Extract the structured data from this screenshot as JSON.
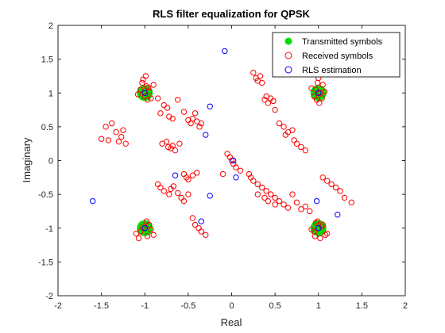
{
  "chart_data": {
    "type": "scatter",
    "title": "RLS filter equalization for QPSK",
    "xlabel": "Real",
    "ylabel": "Imaginary",
    "xlim": [
      -2,
      2
    ],
    "ylim": [
      -2,
      2
    ],
    "xticks": [
      -2,
      -1.5,
      -1,
      -0.5,
      0,
      0.5,
      1,
      1.5,
      2
    ],
    "yticks": [
      -2,
      -1.5,
      -1,
      -0.5,
      0,
      0.5,
      1,
      1.5,
      2
    ],
    "xtick_labels": [
      "-2",
      "-1.5",
      "-1",
      "-0.5",
      "0",
      "0.5",
      "1",
      "1.5",
      "2"
    ],
    "ytick_labels": [
      "-2",
      "-1.5",
      "-1",
      "-0.5",
      "0",
      "0.5",
      "1",
      "1.5",
      "2"
    ],
    "grid": false,
    "legend_position": "top-right",
    "series": [
      {
        "name": "Transmitted symbols",
        "marker": "filled-circle",
        "color": "#00e000",
        "x": [
          -1,
          1,
          -1,
          1
        ],
        "y": [
          1,
          1,
          -1,
          -1
        ]
      },
      {
        "name": "Received symbols",
        "marker": "open-circle",
        "color": "#ff0000",
        "x": [
          -1.05,
          -1.02,
          -0.98,
          -0.95,
          -1.0,
          -0.97,
          -1.03,
          -0.99,
          -0.9,
          -1.08,
          -0.93,
          -0.96,
          1.02,
          0.97,
          1.05,
          1.0,
          0.95,
          1.03,
          0.98,
          1.07,
          0.92,
          1.01,
          0.99,
          1.04,
          -1.0,
          -0.95,
          -1.05,
          -0.9,
          -1.1,
          -0.98,
          -1.02,
          -0.93,
          -1.07,
          -0.97,
          1.0,
          1.05,
          0.95,
          1.08,
          1.1,
          0.97,
          1.02,
          0.92,
          1.04,
          0.99,
          0.96,
          -1.45,
          -1.42,
          -1.38,
          -1.33,
          -1.3,
          -1.27,
          -1.25,
          -1.22,
          -1.5,
          -0.85,
          -0.82,
          -0.78,
          -0.74,
          -0.72,
          -0.68,
          -0.62,
          -0.55,
          -0.5,
          -0.47,
          -0.45,
          -0.42,
          -0.4,
          -0.37,
          -0.35,
          -0.8,
          -0.75,
          -0.73,
          -0.7,
          -0.68,
          -0.65,
          -0.6,
          -0.55,
          -0.52,
          -0.5,
          -0.45,
          -0.4,
          -0.85,
          -0.82,
          -0.78,
          -0.72,
          -0.7,
          -0.67,
          -0.62,
          -0.58,
          -0.55,
          -0.5,
          -0.45,
          -0.42,
          -0.38,
          -0.35,
          -0.3,
          0.25,
          0.28,
          0.3,
          0.33,
          0.35,
          0.38,
          0.4,
          0.42,
          0.45,
          0.48,
          0.5,
          0.55,
          0.6,
          0.62,
          0.65,
          0.7,
          0.72,
          0.75,
          0.8,
          0.85,
          0.2,
          0.22,
          0.25,
          0.3,
          0.35,
          0.4,
          0.45,
          0.5,
          0.55,
          0.6,
          0.65,
          0.7,
          0.75,
          0.8,
          0.85,
          0.9,
          0.0,
          0.02,
          -0.02,
          0.05,
          -0.05,
          0.1,
          -0.1,
          0.3,
          0.38,
          0.42,
          0.5,
          1.1,
          1.15,
          1.2,
          1.25,
          1.3,
          1.38,
          1.05
        ],
        "y": [
          1.05,
          1.2,
          1.1,
          1.02,
          0.95,
          0.9,
          1.15,
          1.25,
          1.12,
          0.98,
          0.92,
          1.08,
          1.0,
          1.05,
          1.12,
          1.22,
          0.95,
          1.3,
          0.9,
          1.02,
          1.07,
          0.85,
          1.15,
          0.92,
          -1.0,
          -0.95,
          -1.05,
          -1.1,
          -1.08,
          -0.9,
          -0.98,
          -1.02,
          -1.15,
          -1.12,
          -1.0,
          -0.95,
          -1.05,
          -1.1,
          -1.08,
          -0.92,
          -1.15,
          -1.02,
          -0.98,
          -0.9,
          -1.12,
          0.5,
          0.3,
          0.55,
          0.42,
          0.28,
          0.35,
          0.45,
          0.25,
          0.32,
          0.92,
          0.7,
          0.82,
          0.78,
          0.65,
          0.62,
          0.9,
          0.72,
          0.6,
          0.55,
          0.62,
          0.7,
          0.58,
          0.5,
          0.55,
          0.25,
          0.28,
          0.2,
          0.18,
          0.22,
          0.15,
          0.25,
          -0.2,
          -0.25,
          -0.28,
          -0.22,
          -0.18,
          -0.35,
          -0.4,
          -0.45,
          -0.5,
          -0.42,
          -0.38,
          -0.48,
          -0.55,
          -0.6,
          -0.5,
          -0.85,
          -0.95,
          -1.0,
          -1.05,
          -1.1,
          1.3,
          1.22,
          1.18,
          1.25,
          1.15,
          0.9,
          0.95,
          0.85,
          0.92,
          0.88,
          0.75,
          0.55,
          0.5,
          0.38,
          0.42,
          0.45,
          0.3,
          0.25,
          0.2,
          0.15,
          -0.2,
          -0.25,
          -0.3,
          -0.35,
          -0.4,
          -0.45,
          -0.5,
          -0.55,
          -0.6,
          -0.65,
          -0.7,
          -0.5,
          -0.62,
          -0.72,
          -0.68,
          -0.75,
          0.0,
          -0.05,
          0.05,
          -0.1,
          0.1,
          -0.15,
          -0.2,
          -0.5,
          -0.55,
          -0.6,
          -0.65,
          -0.3,
          -0.35,
          -0.4,
          -0.45,
          -0.55,
          -0.62,
          -0.25
        ]
      },
      {
        "name": "RLS estimation",
        "marker": "open-circle",
        "color": "#0000ff",
        "x": [
          -0.08,
          1.0,
          -0.25,
          -0.3,
          0.02,
          -0.65,
          0.05,
          -0.25,
          -0.35,
          1.22,
          -1.6,
          -1.0,
          -1.0,
          1.0,
          0.98
        ],
        "y": [
          1.62,
          1.0,
          0.8,
          0.38,
          0.0,
          -0.22,
          -0.25,
          -0.52,
          -0.9,
          -0.8,
          -0.6,
          1.0,
          -1.0,
          -1.0,
          -0.6
        ]
      }
    ]
  }
}
